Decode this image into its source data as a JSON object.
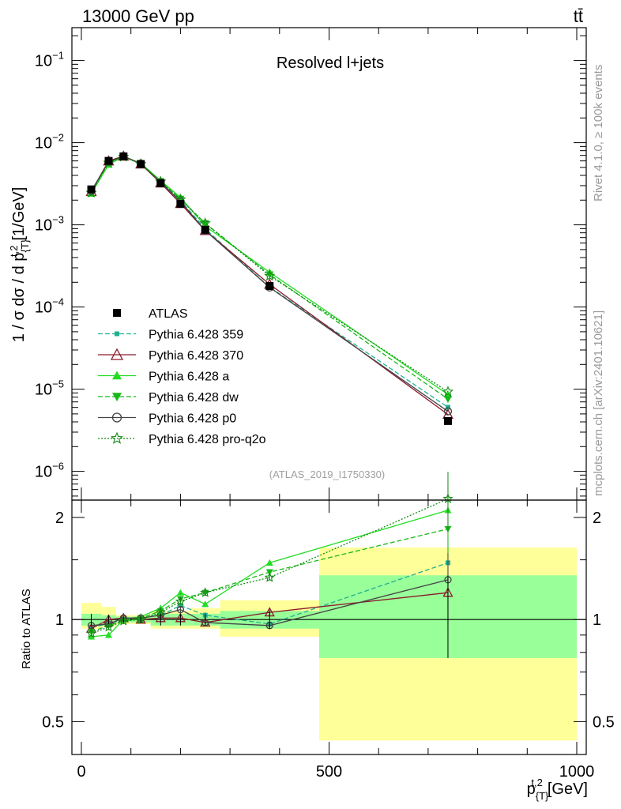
{
  "chart_data": {
    "type": "line",
    "header_left": "13000 GeV pp",
    "header_right": "tt̄",
    "title": "Resolved l+jets",
    "watermark": "(ATLAS_2019_I1750330)",
    "side_top": "Rivet 4.1.0, ≥ 100k events",
    "side_bottom": "mcplots.cern.ch [arXiv:2401.10621]",
    "ylabel_main": "1 / σ dσ / d p",
    "ylabel_sup": "t,2",
    "ylabel_sub": "{T}",
    "ylabel_unit": "[1/GeV]",
    "ylabel_ratio": "Ratio to ATLAS",
    "xlabel": "p",
    "xlabel_sup": "t,2",
    "xlabel_sub": "{T}",
    "xlabel_unit": "[GeV]",
    "xlim": [
      0,
      1000
    ],
    "ylim_main_log10": [
      -6.35,
      -0.6
    ],
    "ylim_ratio": [
      0.4,
      2.25
    ],
    "x_ticks": [
      {
        "v": 0,
        "label": "0"
      },
      {
        "v": 500,
        "label": "500"
      },
      {
        "v": 1000,
        "label": "1000"
      }
    ],
    "main_y_ticks": [
      {
        "exp": -6,
        "label": "10",
        "sup": "−6"
      },
      {
        "exp": -5,
        "label": "10",
        "sup": "−5"
      },
      {
        "exp": -4,
        "label": "10",
        "sup": "−4"
      },
      {
        "exp": -3,
        "label": "10",
        "sup": "−3"
      },
      {
        "exp": -2,
        "label": "10",
        "sup": "−2"
      },
      {
        "exp": -1,
        "label": "10",
        "sup": "−1"
      }
    ],
    "ratio_y_ticks": [
      {
        "v": 0.5,
        "label": "0.5"
      },
      {
        "v": 1,
        "label": "1"
      },
      {
        "v": 2,
        "label": "2"
      }
    ],
    "bin_edges": [
      0,
      40,
      70,
      100,
      140,
      180,
      220,
      280,
      480,
      1000
    ],
    "x": [
      20,
      55,
      85,
      120,
      160,
      200,
      250,
      380,
      740
    ],
    "atlas": {
      "name": "ATLAS",
      "values": [
        0.0027,
        0.006,
        0.0068,
        0.0055,
        0.0032,
        0.0018,
        0.00087,
        0.00018,
        4.1e-06
      ],
      "band_inner": [
        [
          0.96,
          1.04
        ],
        [
          0.97,
          1.03
        ],
        [
          0.98,
          1.02
        ],
        [
          0.98,
          1.02
        ],
        [
          0.96,
          1.04
        ],
        [
          0.96,
          1.04
        ],
        [
          0.96,
          1.04
        ],
        [
          0.94,
          1.06
        ],
        [
          0.77,
          1.35
        ]
      ],
      "band_outer": [
        [
          0.94,
          1.12
        ],
        [
          0.95,
          1.09
        ],
        [
          0.97,
          1.03
        ],
        [
          0.97,
          1.03
        ],
        [
          0.94,
          1.06
        ],
        [
          0.94,
          1.06
        ],
        [
          0.94,
          1.08
        ],
        [
          0.89,
          1.14
        ],
        [
          0.44,
          1.63
        ]
      ],
      "color": "#000000"
    },
    "series": [
      {
        "name": "Pythia 6.428 359",
        "color": "#20b090",
        "dash": "6,3",
        "marker": "square-small",
        "ratio": [
          0.95,
          0.97,
          1.0,
          1.01,
          1.03,
          1.1,
          1.03,
          0.97,
          1.47
        ]
      },
      {
        "name": "Pythia 6.428 370",
        "color": "#8b1a2b",
        "dash": "",
        "marker": "triangle-open",
        "ratio": [
          0.94,
          1.0,
          1.01,
          1.0,
          1.01,
          1.01,
          0.98,
          1.05,
          1.2
        ]
      },
      {
        "name": "Pythia 6.428 a",
        "color": "#22dd22",
        "dash": "",
        "marker": "triangle",
        "ratio": [
          0.89,
          0.9,
          1.0,
          1.02,
          1.08,
          1.2,
          1.11,
          1.47,
          2.1
        ]
      },
      {
        "name": "Pythia 6.428 dw",
        "color": "#18b818",
        "dash": "6,3",
        "marker": "triangle-down",
        "ratio": [
          0.92,
          0.96,
          0.99,
          1.01,
          1.06,
          1.15,
          1.2,
          1.38,
          1.85
        ]
      },
      {
        "name": "Pythia 6.428 p0",
        "color": "#444444",
        "dash": "",
        "marker": "circle-open",
        "ratio": [
          0.96,
          0.97,
          1.01,
          1.01,
          1.03,
          1.07,
          0.98,
          0.96,
          1.31
        ]
      },
      {
        "name": "Pythia 6.428 pro-q2o",
        "color": "#148a14",
        "dash": "2,2",
        "marker": "star-open",
        "ratio": [
          0.91,
          0.95,
          0.99,
          1.0,
          1.05,
          1.13,
          1.2,
          1.33,
          2.27
        ]
      }
    ]
  }
}
